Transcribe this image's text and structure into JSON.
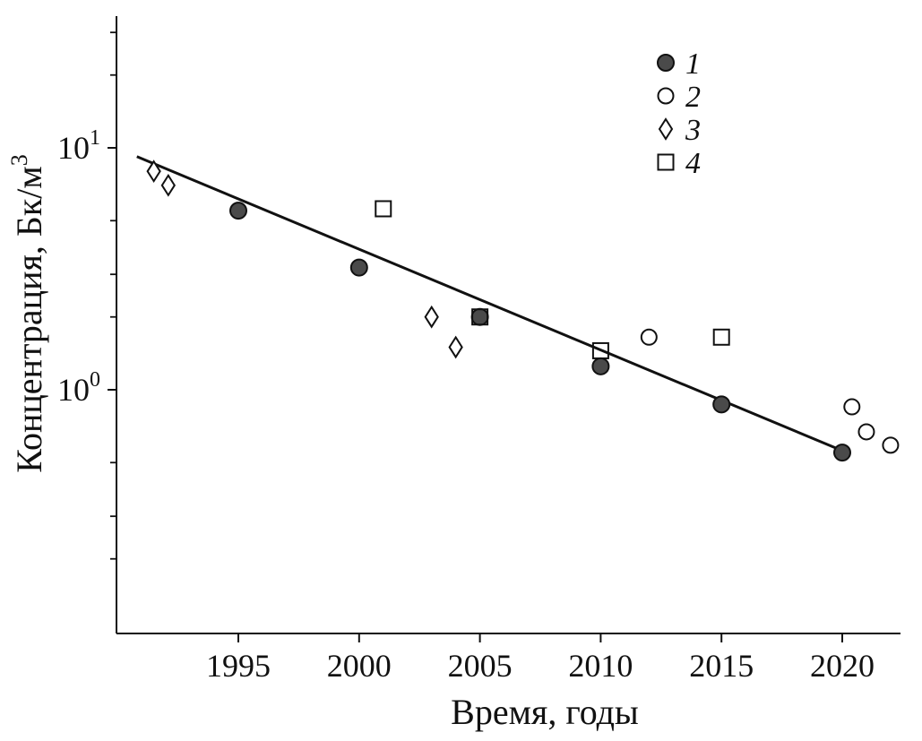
{
  "chart_data": {
    "type": "scatter",
    "xlabel": "Время, годы",
    "ylabel": "Концентрация, Бк/м",
    "ylabel_superscript": "3",
    "x_ticks": [
      1995,
      2000,
      2005,
      2010,
      2015,
      2020
    ],
    "xlim": [
      1990,
      2023
    ],
    "ylim": [
      0.1,
      40
    ],
    "y_scale": "log",
    "y_tick_labels": [
      {
        "value": 10,
        "base": "10",
        "exp": "1"
      },
      {
        "value": 1,
        "base": "10",
        "exp": "0"
      }
    ],
    "y_minor_ticks": [
      0.2,
      0.3,
      0.5,
      2,
      3,
      5,
      20,
      30
    ],
    "grid": false,
    "legend_position": "top-right",
    "series": [
      {
        "name": "1",
        "marker": "filled-circle",
        "x": [
          1995,
          2000,
          2005,
          2010,
          2015,
          2020
        ],
        "y": [
          5.5,
          3.2,
          2.0,
          1.25,
          0.87,
          0.55
        ]
      },
      {
        "name": "2",
        "marker": "open-circle",
        "x": [
          2012,
          2020.4,
          2021,
          2022
        ],
        "y": [
          1.65,
          0.85,
          0.67,
          0.59
        ]
      },
      {
        "name": "3",
        "marker": "open-diamond",
        "x": [
          1991.5,
          1992.1,
          2003,
          2004
        ],
        "y": [
          8.0,
          7.0,
          2.0,
          1.5
        ]
      },
      {
        "name": "4",
        "marker": "open-square",
        "x": [
          2001,
          2005,
          2010,
          2015
        ],
        "y": [
          5.6,
          2.0,
          1.45,
          1.65
        ]
      }
    ],
    "trendline": {
      "x": [
        1990.8,
        2020
      ],
      "y": [
        9.2,
        0.56
      ]
    },
    "colors": {
      "filled_marker": "#4a4a4a",
      "stroke": "#111111"
    }
  }
}
